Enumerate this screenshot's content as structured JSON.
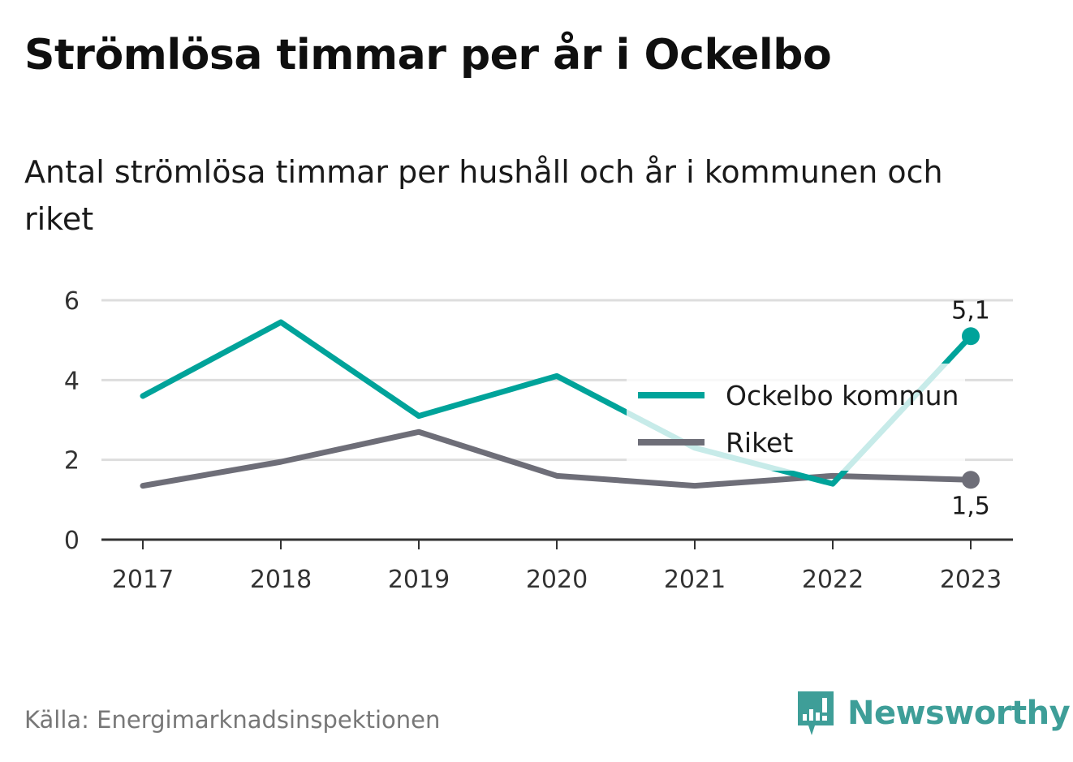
{
  "title": "Strömlösa timmar per år i Ockelbo",
  "subtitle": "Antal strömlösa timmar per hushåll och år i kommunen och riket",
  "source": "Källa: Energimarknadsinspektionen",
  "brand": {
    "name": "Newsworthy",
    "icon": "newsworthy-logo-icon",
    "color": "#3e9e98"
  },
  "colors": {
    "ockelbo": "#00a39a",
    "riket": "#6e6e78",
    "grid": "#dddddd",
    "axis": "#333333"
  },
  "chart_data": {
    "type": "line",
    "x": [
      "2017",
      "2018",
      "2019",
      "2020",
      "2021",
      "2022",
      "2023"
    ],
    "series": [
      {
        "name": "Ockelbo kommun",
        "values": [
          3.6,
          5.45,
          3.1,
          4.1,
          2.3,
          1.4,
          5.1
        ],
        "color": "#00a39a"
      },
      {
        "name": "Riket",
        "values": [
          1.35,
          1.95,
          2.7,
          1.6,
          1.35,
          1.6,
          1.5
        ],
        "color": "#6e6e78"
      }
    ],
    "yticks": [
      "0",
      "2",
      "4",
      "6"
    ],
    "ylim": [
      0,
      6
    ],
    "end_labels": [
      "5,1",
      "1,5"
    ],
    "grid": true,
    "legend_position": "right"
  }
}
